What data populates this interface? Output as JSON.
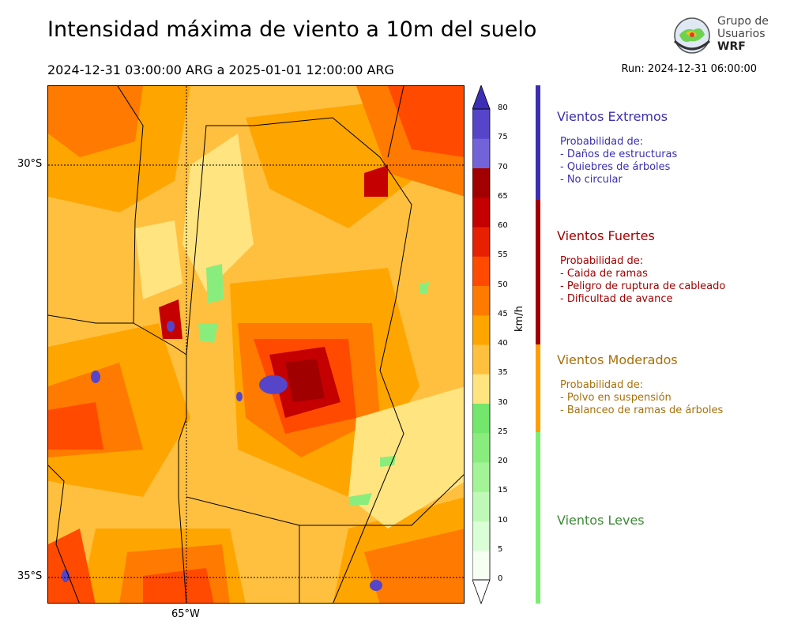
{
  "header": {
    "title": "Intensidad máxima de viento a 10m del suelo",
    "subtitle": "2024-12-31 03:00:00 ARG  a  2025-01-01 12:00:00 ARG",
    "run": "Run: 2024-12-31 06:00:00"
  },
  "logo": {
    "line1": "Grupo de",
    "line2": "Usuarios",
    "line3": "WRF"
  },
  "map": {
    "lat_labels": [
      "30°S",
      "35°S"
    ],
    "lon_labels": [
      "65°W"
    ]
  },
  "colorbar": {
    "unit": "km/h",
    "ticks": [
      "0",
      "5",
      "10",
      "15",
      "20",
      "25",
      "30",
      "35",
      "40",
      "45",
      "50",
      "55",
      "60",
      "65",
      "70",
      "75",
      "80"
    ],
    "colors": [
      "#f5fff2",
      "#dafed6",
      "#bff9b7",
      "#a3f397",
      "#89ed7d",
      "#73e66c",
      "#ffe480",
      "#ffc040",
      "#ffa500",
      "#ff7a00",
      "#ff4a00",
      "#e62000",
      "#c40000",
      "#a00000",
      "#7363d9",
      "#5645c8",
      "#3d2fb5"
    ]
  },
  "categories": [
    {
      "title": "Vientos Extremos",
      "desc": "Probabilidad de:\n- Daños de estructuras\n- Quiebres de árboles\n- No circular",
      "color": "#3b2fb0"
    },
    {
      "title": "Vientos Fuertes",
      "desc": "Probabilidad de:\n- Caida de ramas\n- Peligro de ruptura de cableado\n- Dificultad de avance",
      "color": "#a00000"
    },
    {
      "title": "Vientos Moderados",
      "desc": "Probabilidad de:\n- Polvo en suspensión\n- Balanceo de ramas de árboles",
      "color": "#a6700b"
    },
    {
      "title": "Vientos Leves",
      "desc": "",
      "color": "#3c8a35"
    }
  ],
  "strip_colors": [
    "#3b2fb0",
    "#a00000",
    "#ff9e00",
    "#7aef6f"
  ]
}
